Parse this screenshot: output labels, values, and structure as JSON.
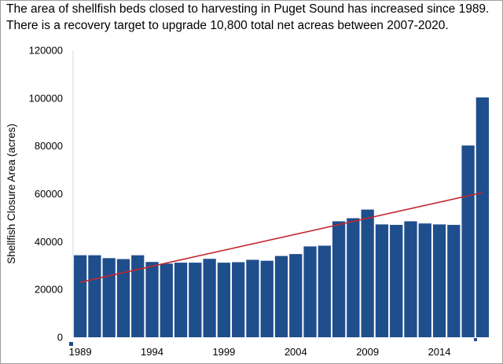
{
  "subtitles": [
    "The area of shellfish beds closed to harvesting in Puget Sound has increased since 1989.",
    "There is a recovery target to upgrade 10,800 total net acreas between 2007-2020."
  ],
  "chart_data": {
    "type": "bar",
    "ylabel": "Shellfish Closure Area (acres)",
    "xlabel": "",
    "ylim": [
      0,
      120000
    ],
    "yticks": [
      0,
      20000,
      40000,
      60000,
      80000,
      100000,
      120000
    ],
    "xtick_labels": [
      "1989",
      "1994",
      "1999",
      "2004",
      "2009",
      "2014"
    ],
    "grid": false,
    "bar_color": "#1f4e8c",
    "trendline_color": "#c0282e",
    "categories": [
      "1989",
      "1990",
      "1991",
      "1992",
      "1993",
      "1994",
      "1995",
      "1996",
      "1997",
      "1998",
      "1999",
      "2000",
      "2001",
      "2002",
      "2003",
      "2004",
      "2005",
      "2006",
      "2007",
      "2008",
      "2009",
      "2010",
      "2011",
      "2012",
      "2013",
      "2014",
      "2015",
      "2016",
      "2017"
    ],
    "values": [
      34300,
      34300,
      33100,
      32700,
      34300,
      31500,
      30800,
      31200,
      31200,
      32800,
      31200,
      31400,
      32400,
      32000,
      34000,
      34800,
      38000,
      38300,
      48500,
      49800,
      53400,
      47200,
      47000,
      48500,
      47600,
      47200,
      47000,
      80200,
      100300
    ],
    "trendline": {
      "x": [
        "1989",
        "2017"
      ],
      "y": [
        23000,
        60500
      ]
    }
  }
}
